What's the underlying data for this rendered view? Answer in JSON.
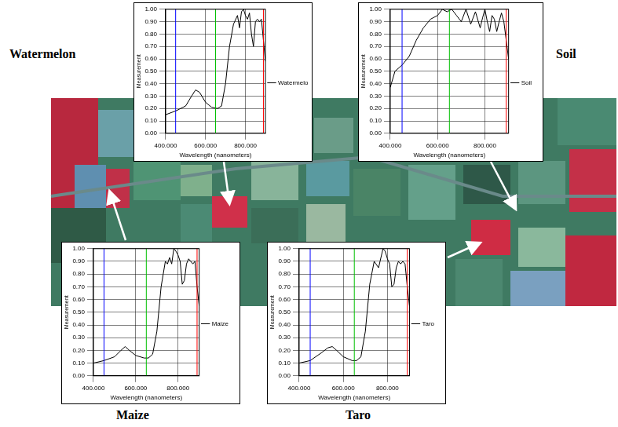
{
  "chart_data": [
    {
      "type": "line",
      "title": "Watermelon",
      "x_label": "Wavelength (nanometers)",
      "y_label": "Measurement",
      "x": [
        400,
        450,
        500,
        530,
        550,
        570,
        600,
        630,
        660,
        680,
        700,
        720,
        740,
        760,
        770,
        780,
        790,
        800,
        810,
        820,
        830,
        840,
        850,
        860,
        870,
        880,
        890,
        900
      ],
      "series": [
        {
          "name": "Watermelon",
          "color": "#000000",
          "values": [
            0.15,
            0.18,
            0.22,
            0.3,
            0.35,
            0.33,
            0.25,
            0.21,
            0.2,
            0.22,
            0.4,
            0.7,
            0.88,
            0.95,
            0.85,
            0.98,
            1.0,
            0.95,
            0.92,
            0.97,
            0.8,
            0.7,
            0.9,
            0.92,
            0.9,
            0.92,
            0.75,
            0.58
          ]
        }
      ],
      "xlim": [
        400,
        900
      ],
      "xticks": [
        {
          "value": 400,
          "label": "400.000"
        },
        {
          "value": 600,
          "label": "600.000"
        },
        {
          "value": 800,
          "label": "800.000"
        }
      ],
      "ylim": [
        0,
        1
      ],
      "yticks": [
        {
          "value": 0,
          "label": "0.00"
        },
        {
          "value": 0.1,
          "label": "0.10"
        },
        {
          "value": 0.2,
          "label": "0.20"
        },
        {
          "value": 0.3,
          "label": "0.30"
        },
        {
          "value": 0.4,
          "label": "0.40"
        },
        {
          "value": 0.5,
          "label": "0.50"
        },
        {
          "value": 0.6,
          "label": "0.60"
        },
        {
          "value": 0.7,
          "label": "0.70"
        },
        {
          "value": 0.8,
          "label": "0.80"
        },
        {
          "value": 0.9,
          "label": "0.90"
        },
        {
          "value": 1,
          "label": "1.00"
        }
      ],
      "bands": [
        {
          "value": 450,
          "color": "#0000ff"
        },
        {
          "value": 650,
          "color": "#00c000"
        },
        {
          "value": 890,
          "color": "#ff0000"
        }
      ],
      "grid": true,
      "legend": "right"
    },
    {
      "type": "line",
      "title": "Soil",
      "x_label": "Wavelength (nanometers)",
      "y_label": "Measurement",
      "x": [
        400,
        420,
        450,
        480,
        510,
        540,
        570,
        600,
        620,
        640,
        660,
        680,
        700,
        720,
        740,
        760,
        780,
        790,
        800,
        810,
        820,
        830,
        840,
        850,
        860,
        870,
        880,
        890,
        900
      ],
      "series": [
        {
          "name": "Soil",
          "color": "#000000",
          "values": [
            0.37,
            0.5,
            0.55,
            0.62,
            0.75,
            0.85,
            0.92,
            0.95,
            1.0,
            0.98,
            1.0,
            0.95,
            0.9,
            1.0,
            0.88,
            0.98,
            0.85,
            0.93,
            1.0,
            0.9,
            0.82,
            0.95,
            0.92,
            0.82,
            0.9,
            0.97,
            0.9,
            0.75,
            0.6
          ]
        }
      ],
      "xlim": [
        400,
        900
      ],
      "xticks": [
        {
          "value": 400,
          "label": "400.000"
        },
        {
          "value": 600,
          "label": "600.000"
        },
        {
          "value": 800,
          "label": "800.000"
        }
      ],
      "ylim": [
        0,
        1
      ],
      "yticks": [
        {
          "value": 0,
          "label": "0.00"
        },
        {
          "value": 0.1,
          "label": "0.10"
        },
        {
          "value": 0.2,
          "label": "0.20"
        },
        {
          "value": 0.3,
          "label": "0.30"
        },
        {
          "value": 0.4,
          "label": "0.40"
        },
        {
          "value": 0.5,
          "label": "0.50"
        },
        {
          "value": 0.6,
          "label": "0.60"
        },
        {
          "value": 0.7,
          "label": "0.70"
        },
        {
          "value": 0.8,
          "label": "0.80"
        },
        {
          "value": 0.9,
          "label": "0.90"
        },
        {
          "value": 1,
          "label": "1.00"
        }
      ],
      "bands": [
        {
          "value": 450,
          "color": "#0000ff"
        },
        {
          "value": 650,
          "color": "#00c000"
        },
        {
          "value": 890,
          "color": "#ff0000"
        }
      ],
      "grid": true,
      "legend": "right"
    },
    {
      "type": "line",
      "title": "Maize",
      "x_label": "Wavelength (nanometers)",
      "y_label": "Measurement",
      "x": [
        400,
        450,
        500,
        530,
        550,
        570,
        600,
        640,
        660,
        680,
        700,
        720,
        740,
        750,
        760,
        770,
        780,
        790,
        800,
        810,
        820,
        830,
        840,
        850,
        860,
        870,
        880,
        890,
        900
      ],
      "series": [
        {
          "name": "Maize",
          "color": "#000000",
          "values": [
            0.1,
            0.12,
            0.15,
            0.2,
            0.23,
            0.2,
            0.16,
            0.14,
            0.14,
            0.17,
            0.35,
            0.7,
            0.9,
            0.88,
            0.93,
            0.88,
            1.0,
            0.98,
            0.95,
            0.9,
            0.72,
            0.75,
            0.88,
            0.92,
            0.9,
            0.88,
            0.9,
            0.7,
            0.55
          ]
        }
      ],
      "xlim": [
        400,
        900
      ],
      "xticks": [
        {
          "value": 400,
          "label": "400.000"
        },
        {
          "value": 600,
          "label": "600.000"
        },
        {
          "value": 800,
          "label": "800.000"
        }
      ],
      "ylim": [
        0,
        1
      ],
      "yticks": [
        {
          "value": 0,
          "label": "0.00"
        },
        {
          "value": 0.1,
          "label": "0.10"
        },
        {
          "value": 0.2,
          "label": "0.20"
        },
        {
          "value": 0.3,
          "label": "0.30"
        },
        {
          "value": 0.4,
          "label": "0.40"
        },
        {
          "value": 0.5,
          "label": "0.50"
        },
        {
          "value": 0.6,
          "label": "0.60"
        },
        {
          "value": 0.7,
          "label": "0.70"
        },
        {
          "value": 0.8,
          "label": "0.80"
        },
        {
          "value": 0.9,
          "label": "0.90"
        },
        {
          "value": 1,
          "label": "1.00"
        }
      ],
      "bands": [
        {
          "value": 450,
          "color": "#0000ff"
        },
        {
          "value": 650,
          "color": "#00c000"
        },
        {
          "value": 890,
          "color": "#ff0000"
        }
      ],
      "grid": true,
      "legend": "right"
    },
    {
      "type": "line",
      "title": "Taro",
      "x_label": "Wavelength (nanometers)",
      "y_label": "Measurement",
      "x": [
        400,
        450,
        500,
        530,
        550,
        570,
        600,
        640,
        660,
        680,
        700,
        720,
        740,
        760,
        780,
        790,
        800,
        810,
        820,
        830,
        840,
        850,
        860,
        870,
        880,
        890,
        900
      ],
      "series": [
        {
          "name": "Taro",
          "color": "#000000",
          "values": [
            0.1,
            0.12,
            0.18,
            0.22,
            0.23,
            0.2,
            0.15,
            0.12,
            0.12,
            0.15,
            0.35,
            0.72,
            0.9,
            0.85,
            1.0,
            0.98,
            0.92,
            0.88,
            0.7,
            0.72,
            0.85,
            0.9,
            0.88,
            0.9,
            0.88,
            0.7,
            0.55
          ]
        }
      ],
      "xlim": [
        400,
        900
      ],
      "xticks": [
        {
          "value": 400,
          "label": "400.000"
        },
        {
          "value": 600,
          "label": "600.000"
        },
        {
          "value": 800,
          "label": "800.000"
        }
      ],
      "ylim": [
        0,
        1
      ],
      "yticks": [
        {
          "value": 0,
          "label": "0.00"
        },
        {
          "value": 0.1,
          "label": "0.10"
        },
        {
          "value": 0.2,
          "label": "0.20"
        },
        {
          "value": 0.3,
          "label": "0.30"
        },
        {
          "value": 0.4,
          "label": "0.40"
        },
        {
          "value": 0.5,
          "label": "0.50"
        },
        {
          "value": 0.6,
          "label": "0.60"
        },
        {
          "value": 0.7,
          "label": "0.70"
        },
        {
          "value": 0.8,
          "label": "0.80"
        },
        {
          "value": 0.9,
          "label": "0.90"
        },
        {
          "value": 1,
          "label": "1.00"
        }
      ],
      "bands": [
        {
          "value": 450,
          "color": "#0000ff"
        },
        {
          "value": 650,
          "color": "#00c000"
        },
        {
          "value": 890,
          "color": "#ff0000"
        }
      ],
      "grid": true,
      "legend": "right"
    }
  ]
}
